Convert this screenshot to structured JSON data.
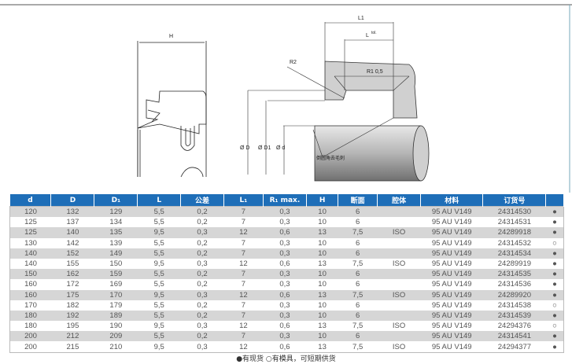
{
  "drawing": {
    "H": "H",
    "L1": "L1",
    "Ltol": "L",
    "tol": "tol.",
    "R2": "R2",
    "R1": "R1 0,5",
    "D": "Ø D",
    "D1": "Ø D1",
    "d": "Ø d",
    "note": "倒圆角去毛刺"
  },
  "table": {
    "headers": [
      "d",
      "D",
      "D₁",
      "L",
      "公差",
      "L₁",
      "R₁ max.",
      "H",
      "断面",
      "腔体",
      "材料",
      "订货号",
      ""
    ],
    "rows": [
      [
        "120",
        "132",
        "129",
        "5,5",
        "0,2",
        "7",
        "0,3",
        "10",
        "6",
        "",
        "95 AU V149",
        "24314530",
        "●"
      ],
      [
        "125",
        "137",
        "134",
        "5,5",
        "0,2",
        "7",
        "0,3",
        "10",
        "6",
        "",
        "95 AU V149",
        "24314531",
        "●"
      ],
      [
        "125",
        "140",
        "135",
        "9,5",
        "0,3",
        "12",
        "0,6",
        "13",
        "7,5",
        "ISO",
        "95 AU V149",
        "24289918",
        "●"
      ],
      [
        "130",
        "142",
        "139",
        "5,5",
        "0,2",
        "7",
        "0,3",
        "10",
        "6",
        "",
        "95 AU V149",
        "24314532",
        "○"
      ],
      [
        "140",
        "152",
        "149",
        "5,5",
        "0,2",
        "7",
        "0,3",
        "10",
        "6",
        "",
        "95 AU V149",
        "24314534",
        "●"
      ],
      [
        "140",
        "155",
        "150",
        "9,5",
        "0,3",
        "12",
        "0,6",
        "13",
        "7,5",
        "ISO",
        "95 AU V149",
        "24289919",
        "●"
      ],
      [
        "150",
        "162",
        "159",
        "5,5",
        "0,2",
        "7",
        "0,3",
        "10",
        "6",
        "",
        "95 AU V149",
        "24314535",
        "●"
      ],
      [
        "160",
        "172",
        "169",
        "5,5",
        "0,2",
        "7",
        "0,3",
        "10",
        "6",
        "",
        "95 AU V149",
        "24314536",
        "●"
      ],
      [
        "160",
        "175",
        "170",
        "9,5",
        "0,3",
        "12",
        "0,6",
        "13",
        "7,5",
        "ISO",
        "95 AU V149",
        "24289920",
        "●"
      ],
      [
        "170",
        "182",
        "179",
        "5,5",
        "0,2",
        "7",
        "0,3",
        "10",
        "6",
        "",
        "95 AU V149",
        "24314538",
        "○"
      ],
      [
        "180",
        "192",
        "189",
        "5,5",
        "0,2",
        "7",
        "0,3",
        "10",
        "6",
        "",
        "95 AU V149",
        "24314539",
        "●"
      ],
      [
        "180",
        "195",
        "190",
        "9,5",
        "0,3",
        "12",
        "0,6",
        "13",
        "7,5",
        "ISO",
        "95 AU V149",
        "24294376",
        "○"
      ],
      [
        "200",
        "212",
        "209",
        "5,5",
        "0,2",
        "7",
        "0,3",
        "10",
        "6",
        "",
        "95 AU V149",
        "24314541",
        "●"
      ],
      [
        "200",
        "215",
        "210",
        "9,5",
        "0,3",
        "12",
        "0,6",
        "13",
        "7,5",
        "ISO",
        "95 AU V149",
        "24294377",
        "●"
      ]
    ]
  },
  "legend": "●有现货 ○有模具，可短期供货"
}
